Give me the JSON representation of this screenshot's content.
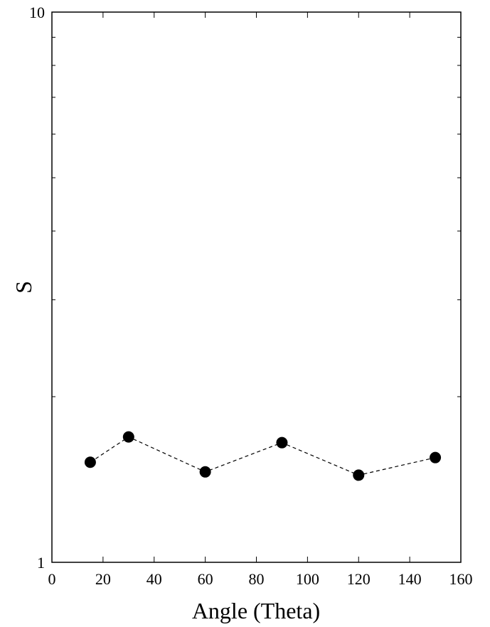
{
  "chart_data": {
    "type": "line",
    "title": "",
    "xlabel": "Angle (Theta)",
    "ylabel": "S",
    "xlim": [
      0,
      160
    ],
    "ylim": [
      1,
      10
    ],
    "yscale": "log",
    "grid": false,
    "x_ticks": [
      0,
      20,
      40,
      60,
      80,
      100,
      120,
      140,
      160
    ],
    "y_tick_labels": [
      "1",
      "10"
    ],
    "series": [
      {
        "x": [
          15,
          30,
          60,
          90,
          120,
          150
        ],
        "y": [
          1.52,
          1.69,
          1.46,
          1.65,
          1.44,
          1.55
        ],
        "marker": "filled-circle",
        "line_style": "dashed",
        "color": "#000000"
      }
    ]
  }
}
